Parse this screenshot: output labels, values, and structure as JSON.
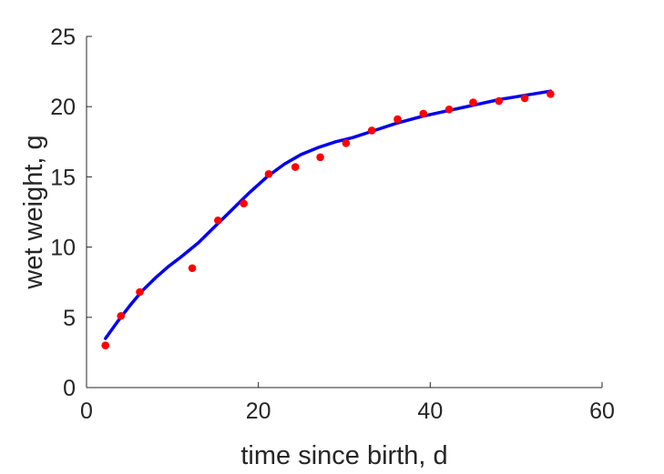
{
  "chart_data": {
    "type": "scatter",
    "xlabel": "time since birth, d",
    "ylabel": "wet weight, g",
    "xlim": [
      0,
      60
    ],
    "ylim": [
      0,
      25
    ],
    "xticks": [
      0,
      20,
      40,
      60
    ],
    "yticks": [
      0,
      5,
      10,
      15,
      20,
      25
    ],
    "grid": false,
    "legend": "none",
    "series": [
      {
        "kind": "points",
        "color": "#ff0000",
        "x": [
          2.2,
          4.0,
          6.2,
          12.3,
          15.3,
          18.3,
          21.2,
          24.3,
          27.2,
          30.2,
          33.2,
          36.2,
          39.2,
          42.2,
          45.0,
          48.0,
          51.0,
          54.0
        ],
        "y": [
          3.0,
          5.1,
          6.8,
          8.5,
          11.9,
          13.1,
          15.2,
          15.7,
          16.4,
          17.4,
          18.3,
          19.1,
          19.5,
          19.8,
          20.3,
          20.4,
          20.6,
          20.9
        ]
      },
      {
        "kind": "line",
        "color": "#0000ee",
        "x": [
          2.2,
          3.5,
          5.0,
          6.5,
          8.0,
          9.5,
          11.0,
          13.0,
          15.0,
          17.0,
          19.0,
          21.0,
          23.0,
          25.0,
          27.0,
          29.0,
          31.0,
          33.0,
          36.0,
          39.0,
          42.0,
          45.0,
          48.0,
          51.0,
          54.0
        ],
        "y": [
          3.5,
          4.6,
          5.8,
          6.9,
          7.8,
          8.6,
          9.3,
          10.3,
          11.5,
          12.7,
          13.9,
          15.0,
          15.9,
          16.6,
          17.1,
          17.5,
          17.8,
          18.2,
          18.8,
          19.3,
          19.7,
          20.1,
          20.5,
          20.8,
          21.1
        ]
      }
    ]
  }
}
